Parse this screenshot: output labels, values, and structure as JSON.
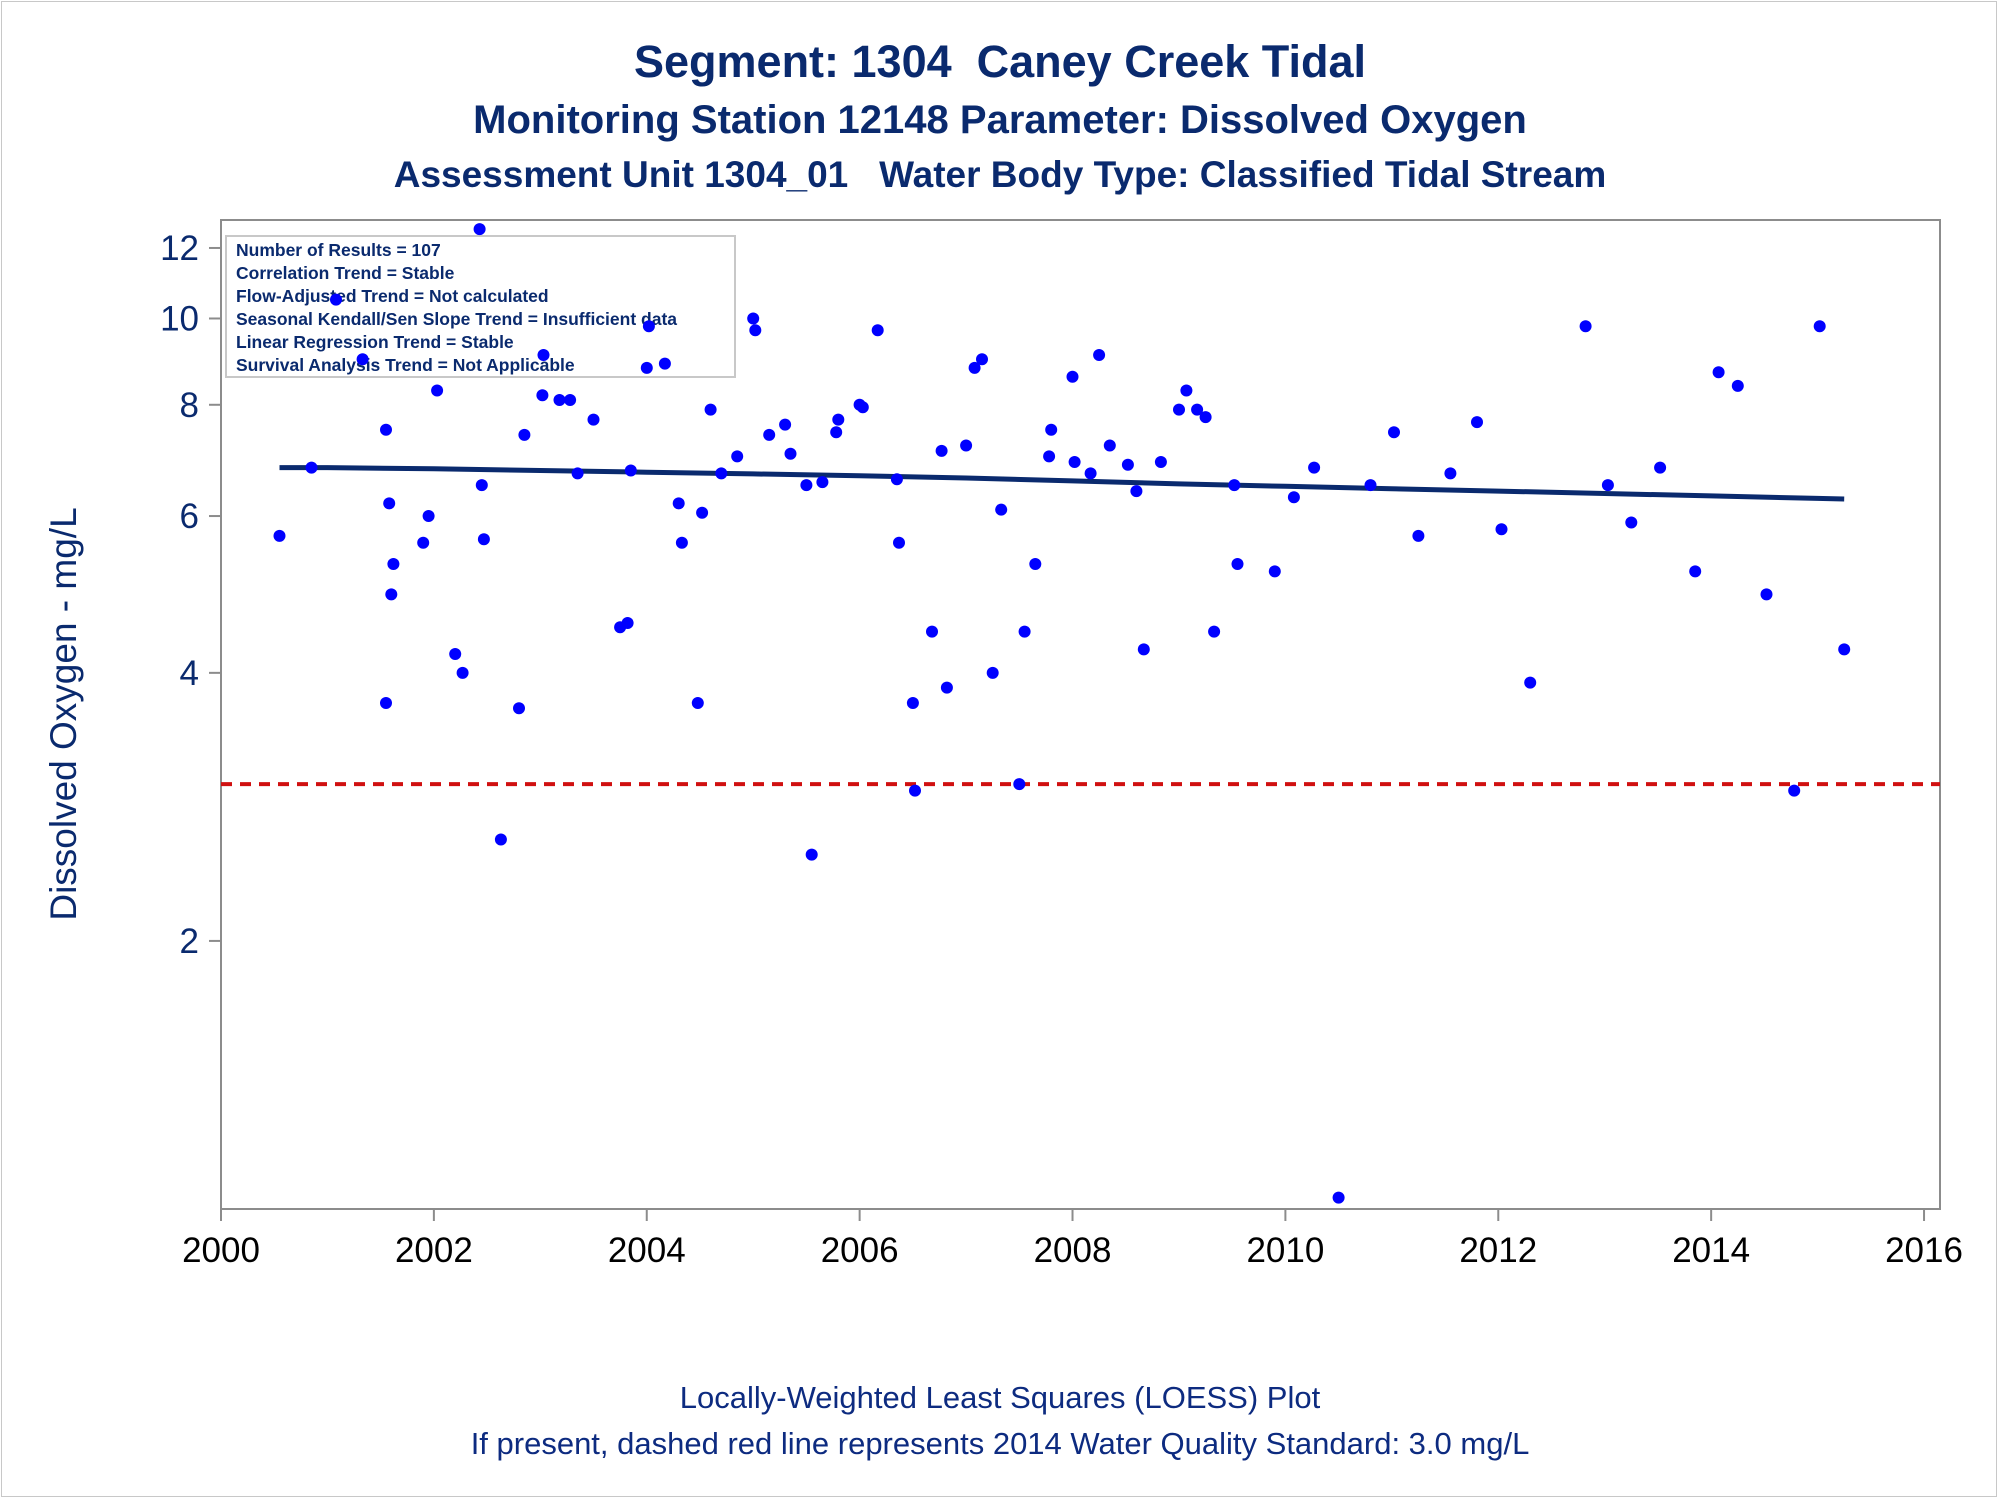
{
  "chart_data": {
    "type": "scatter",
    "title": "Segment: 1304  Caney Creek Tidal",
    "subtitle1": "Monitoring Station 12148 Parameter: Dissolved Oxygen",
    "subtitle2": "Assessment Unit 1304_01   Water Body Type: Classified Tidal Stream",
    "ylabel": "Dissolved Oxygen - mg/L",
    "xlabel": "",
    "x_ticks": [
      "2000",
      "2002",
      "2004",
      "2006",
      "2008",
      "2010",
      "2012",
      "2014",
      "2016"
    ],
    "y_ticks": [
      "2",
      "4",
      "6",
      "8",
      "10",
      "12"
    ],
    "y_scale": "log",
    "xlim": [
      2000,
      2016.15
    ],
    "ylim": [
      1.0,
      12.9
    ],
    "footnote1": "Locally-Weighted Least Squares (LOESS) Plot",
    "footnote2": "If present, dashed red line represents 2014 Water Quality Standard: 3.0 mg/L",
    "colors": {
      "points": "#0000ff",
      "loess": "#0a2a6e",
      "standard": "#d01010",
      "text": "#0a2a6e"
    },
    "info_box": [
      "Number of Results = 107",
      "Correlation Trend = Stable",
      "Flow-Adjusted Trend = Not calculated",
      "Seasonal Kendall/Sen Slope Trend = Insufficient data",
      "Linear Regression Trend = Stable",
      "Survival Analysis Trend = Not Applicable"
    ],
    "standard_line": 3.0,
    "loess": {
      "x": [
        2000.55,
        2001.0,
        2002.0,
        2003.0,
        2004.0,
        2005.0,
        2006.0,
        2007.0,
        2008.0,
        2009.0,
        2010.0,
        2011.0,
        2012.0,
        2013.0,
        2014.0,
        2015.0,
        2015.25
      ],
      "y": [
        6.8,
        6.8,
        6.78,
        6.75,
        6.72,
        6.69,
        6.66,
        6.62,
        6.57,
        6.52,
        6.48,
        6.44,
        6.4,
        6.36,
        6.32,
        6.28,
        6.27
      ]
    },
    "points": {
      "x": [
        2000.55,
        2000.85,
        2001.08,
        2001.33,
        2001.55,
        2001.58,
        2001.6,
        2001.62,
        2001.55,
        2001.9,
        2001.95,
        2002.03,
        2002.2,
        2002.27,
        2002.43,
        2002.45,
        2002.47,
        2002.63,
        2002.8,
        2002.85,
        2003.02,
        2003.03,
        2003.18,
        2003.28,
        2003.35,
        2003.5,
        2003.75,
        2003.82,
        2003.85,
        2004.0,
        2004.02,
        2004.17,
        2004.3,
        2004.33,
        2004.48,
        2004.52,
        2004.6,
        2004.7,
        2004.85,
        2005.0,
        2005.02,
        2005.15,
        2005.3,
        2005.35,
        2005.5,
        2005.55,
        2005.65,
        2005.78,
        2005.8,
        2006.0,
        2006.03,
        2006.17,
        2006.35,
        2006.37,
        2006.5,
        2006.52,
        2006.68,
        2006.77,
        2006.82,
        2007.0,
        2007.08,
        2007.15,
        2007.25,
        2007.33,
        2007.5,
        2007.55,
        2007.65,
        2007.78,
        2007.8,
        2008.0,
        2008.02,
        2008.17,
        2008.25,
        2008.35,
        2008.52,
        2008.6,
        2008.67,
        2008.83,
        2009.0,
        2009.07,
        2009.17,
        2009.25,
        2009.33,
        2009.52,
        2009.55,
        2009.9,
        2010.08,
        2010.27,
        2010.5,
        2010.8,
        2011.02,
        2011.25,
        2011.55,
        2011.8,
        2012.03,
        2012.3,
        2012.82,
        2013.03,
        2013.25,
        2013.52,
        2013.85,
        2014.07,
        2014.25,
        2014.52,
        2014.78,
        2015.02,
        2015.25
      ],
      "y": [
        5.7,
        6.8,
        10.5,
        9.0,
        7.5,
        6.2,
        4.9,
        5.3,
        3.7,
        5.6,
        6.0,
        8.3,
        4.2,
        4.0,
        12.6,
        6.5,
        5.65,
        2.6,
        3.65,
        7.4,
        8.2,
        9.1,
        8.1,
        8.1,
        6.7,
        7.7,
        4.5,
        4.55,
        6.75,
        8.8,
        9.8,
        8.9,
        6.2,
        5.6,
        3.7,
        6.05,
        7.9,
        6.7,
        7.0,
        10.0,
        9.7,
        7.4,
        7.6,
        7.05,
        6.5,
        2.5,
        6.55,
        7.45,
        7.7,
        8.0,
        7.95,
        9.7,
        6.6,
        5.6,
        3.7,
        2.95,
        4.45,
        7.1,
        3.85,
        7.2,
        8.8,
        9.0,
        4.0,
        6.1,
        3.0,
        4.45,
        5.3,
        7.0,
        7.5,
        8.6,
        6.9,
        6.7,
        9.1,
        7.2,
        6.85,
        6.4,
        4.25,
        6.9,
        7.9,
        8.3,
        7.9,
        7.75,
        4.45,
        6.5,
        5.3,
        5.2,
        6.3,
        6.8,
        1.03,
        6.5,
        7.45,
        5.7,
        6.7,
        7.65,
        5.8,
        3.9,
        9.8,
        6.5,
        5.9,
        6.8,
        5.2,
        8.7,
        8.4,
        4.9,
        2.95,
        9.8,
        4.25
      ]
    }
  }
}
